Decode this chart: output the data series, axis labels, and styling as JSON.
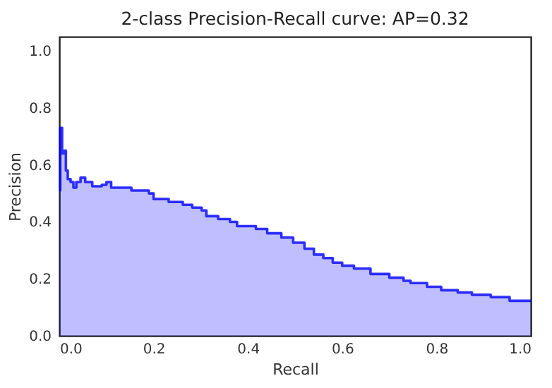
{
  "chart_data": {
    "type": "area",
    "title": "2-class Precision-Recall curve: AP=0.32",
    "xlabel": "Recall",
    "ylabel": "Precision",
    "xlim": [
      0,
      1
    ],
    "ylim": [
      0,
      1.05
    ],
    "xticks": [
      {
        "value": 0,
        "label": "0.0"
      },
      0.2,
      0.4,
      0.6,
      0.8,
      {
        "value": 1,
        "label": "1.0"
      }
    ],
    "yticks": [
      {
        "value": 0,
        "label": "0.0"
      },
      0.2,
      0.4,
      0.6,
      0.8,
      {
        "value": 1,
        "label": "1.0"
      }
    ],
    "grid": false,
    "series": [
      {
        "color": "#0000ff",
        "x": [
          0,
          0.002,
          0.002,
          0.006,
          0.006,
          0.01,
          0.01,
          0.014,
          0.014,
          0.018,
          0.018,
          0.024,
          0.024,
          0.03,
          0.03,
          0.036,
          0.036,
          0.045,
          0.045,
          0.055,
          0.055,
          0.07,
          0.07,
          0.09,
          0.09,
          0.1,
          0.1,
          0.11,
          0.11,
          0.153,
          0.153,
          0.19,
          0.19,
          0.2,
          0.2,
          0.232,
          0.232,
          0.262,
          0.262,
          0.282,
          0.282,
          0.302,
          0.302,
          0.312,
          0.312,
          0.337,
          0.337,
          0.362,
          0.362,
          0.377,
          0.377,
          0.417,
          0.417,
          0.441,
          0.441,
          0.471,
          0.471,
          0.496,
          0.496,
          0.52,
          0.52,
          0.54,
          0.54,
          0.56,
          0.56,
          0.58,
          0.58,
          0.6,
          0.6,
          0.625,
          0.625,
          0.66,
          0.66,
          0.7,
          0.7,
          0.73,
          0.73,
          0.745,
          0.745,
          0.78,
          0.78,
          0.81,
          0.81,
          0.845,
          0.845,
          0.875,
          0.875,
          0.915,
          0.915,
          0.955,
          0.955,
          1.0
        ],
        "values": [
          0.51,
          0.51,
          0.73,
          0.73,
          0.64,
          0.64,
          0.65,
          0.65,
          0.58,
          0.58,
          0.55,
          0.55,
          0.54,
          0.54,
          0.52,
          0.52,
          0.54,
          0.54,
          0.555,
          0.555,
          0.54,
          0.54,
          0.525,
          0.525,
          0.53,
          0.53,
          0.54,
          0.54,
          0.52,
          0.52,
          0.51,
          0.51,
          0.5,
          0.5,
          0.48,
          0.48,
          0.47,
          0.47,
          0.46,
          0.46,
          0.45,
          0.45,
          0.44,
          0.44,
          0.42,
          0.42,
          0.41,
          0.41,
          0.4,
          0.4,
          0.385,
          0.385,
          0.375,
          0.375,
          0.36,
          0.36,
          0.345,
          0.345,
          0.327,
          0.327,
          0.306,
          0.306,
          0.285,
          0.285,
          0.273,
          0.273,
          0.257,
          0.257,
          0.246,
          0.246,
          0.236,
          0.236,
          0.217,
          0.217,
          0.204,
          0.204,
          0.193,
          0.193,
          0.185,
          0.185,
          0.172,
          0.172,
          0.16,
          0.16,
          0.152,
          0.152,
          0.144,
          0.144,
          0.136,
          0.136,
          0.123,
          0.123
        ]
      }
    ]
  }
}
